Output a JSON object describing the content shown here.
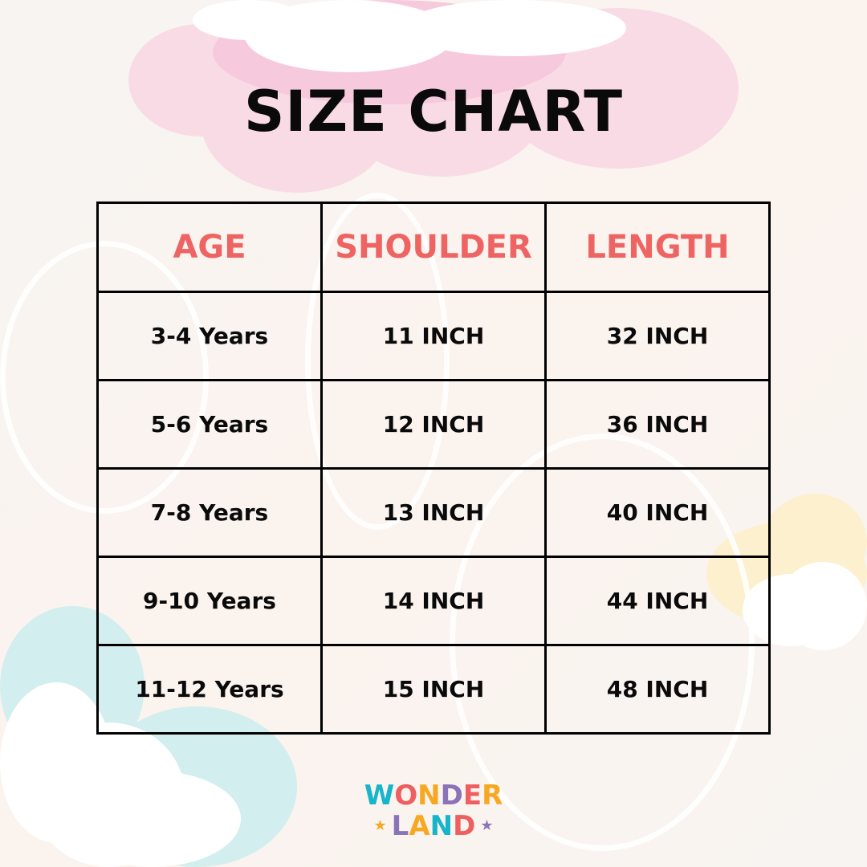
{
  "title": "SIZE CHART",
  "colors": {
    "header_text": "#ee6463",
    "title_text": "#0a0a0a",
    "border": "#000000"
  },
  "chart_data": {
    "type": "table",
    "title": "SIZE CHART",
    "columns": [
      "AGE",
      "SHOULDER",
      "LENGTH"
    ],
    "rows": [
      [
        "3-4 Years",
        "11 INCH",
        "32 INCH"
      ],
      [
        "5-6 Years",
        "12 INCH",
        "36 INCH"
      ],
      [
        "7-8 Years",
        "13 INCH",
        "40 INCH"
      ],
      [
        "9-10 Years",
        "14 INCH",
        "44 INCH"
      ],
      [
        "11-12 Years",
        "15 INCH",
        "48 INCH"
      ]
    ]
  },
  "logo": {
    "text": "WONDERLAND",
    "line1": "WONDER",
    "line2": "LAND",
    "letter_colors": [
      "#17b5c9",
      "#ee5f5f",
      "#f7a823",
      "#8b73b7",
      "#ee5f5f",
      "#f7a823",
      "#8b73b7",
      "#f7a823",
      "#17b5c9",
      "#ee5f5f"
    ]
  }
}
